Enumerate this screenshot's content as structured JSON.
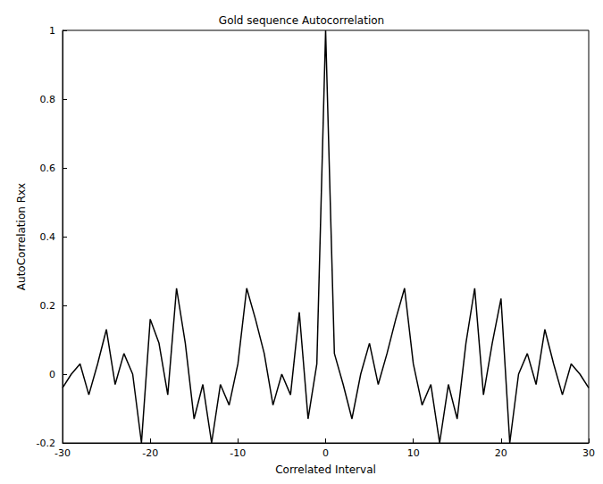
{
  "chart_data": {
    "type": "line",
    "title": "Gold sequence Autocorrelation",
    "x_label": "Correlated Interval",
    "y_label": "AutoCorrelation Rxx",
    "x": [
      -30,
      -29,
      -28,
      -27,
      -26,
      -25,
      -24,
      -23,
      -22,
      -21,
      -20,
      -19,
      -18,
      -17,
      -16,
      -15,
      -14,
      -13,
      -12,
      -11,
      -10,
      -9,
      -8,
      -7,
      -6,
      -5,
      -4,
      -3,
      -2,
      -1,
      0,
      1,
      2,
      3,
      4,
      5,
      6,
      7,
      8,
      9,
      10,
      11,
      12,
      13,
      14,
      15,
      16,
      17,
      18,
      19,
      20,
      21,
      22,
      23,
      24,
      25,
      26,
      27,
      28,
      29,
      30
    ],
    "series": [
      {
        "name": "Autocorrelation",
        "color": "#000000",
        "values": [
          -0.04,
          0.0,
          0.03,
          -0.06,
          0.03,
          0.13,
          -0.03,
          0.06,
          0.0,
          -0.2,
          0.16,
          0.09,
          -0.06,
          0.25,
          0.09,
          -0.13,
          -0.03,
          -0.2,
          -0.03,
          -0.09,
          0.03,
          0.25,
          0.16,
          0.06,
          -0.09,
          0.0,
          -0.06,
          0.18,
          -0.13,
          0.03,
          1.0,
          0.06,
          -0.03,
          -0.13,
          0.0,
          0.09,
          -0.03,
          0.06,
          0.16,
          0.25,
          0.03,
          -0.09,
          -0.03,
          -0.2,
          -0.03,
          -0.13,
          0.09,
          0.25,
          -0.06,
          0.09,
          0.22,
          -0.2,
          0.0,
          0.06,
          -0.03,
          0.13,
          0.03,
          -0.06,
          0.03,
          0.0,
          -0.04
        ]
      }
    ],
    "xlim": [
      -30,
      30
    ],
    "xticks": [
      -30,
      -20,
      -10,
      0,
      10,
      20,
      30
    ],
    "ylim": [
      -0.2,
      1
    ],
    "yticks": [
      -0.2,
      0,
      0.2,
      0.4,
      0.6,
      0.8,
      1
    ],
    "grid": false
  }
}
